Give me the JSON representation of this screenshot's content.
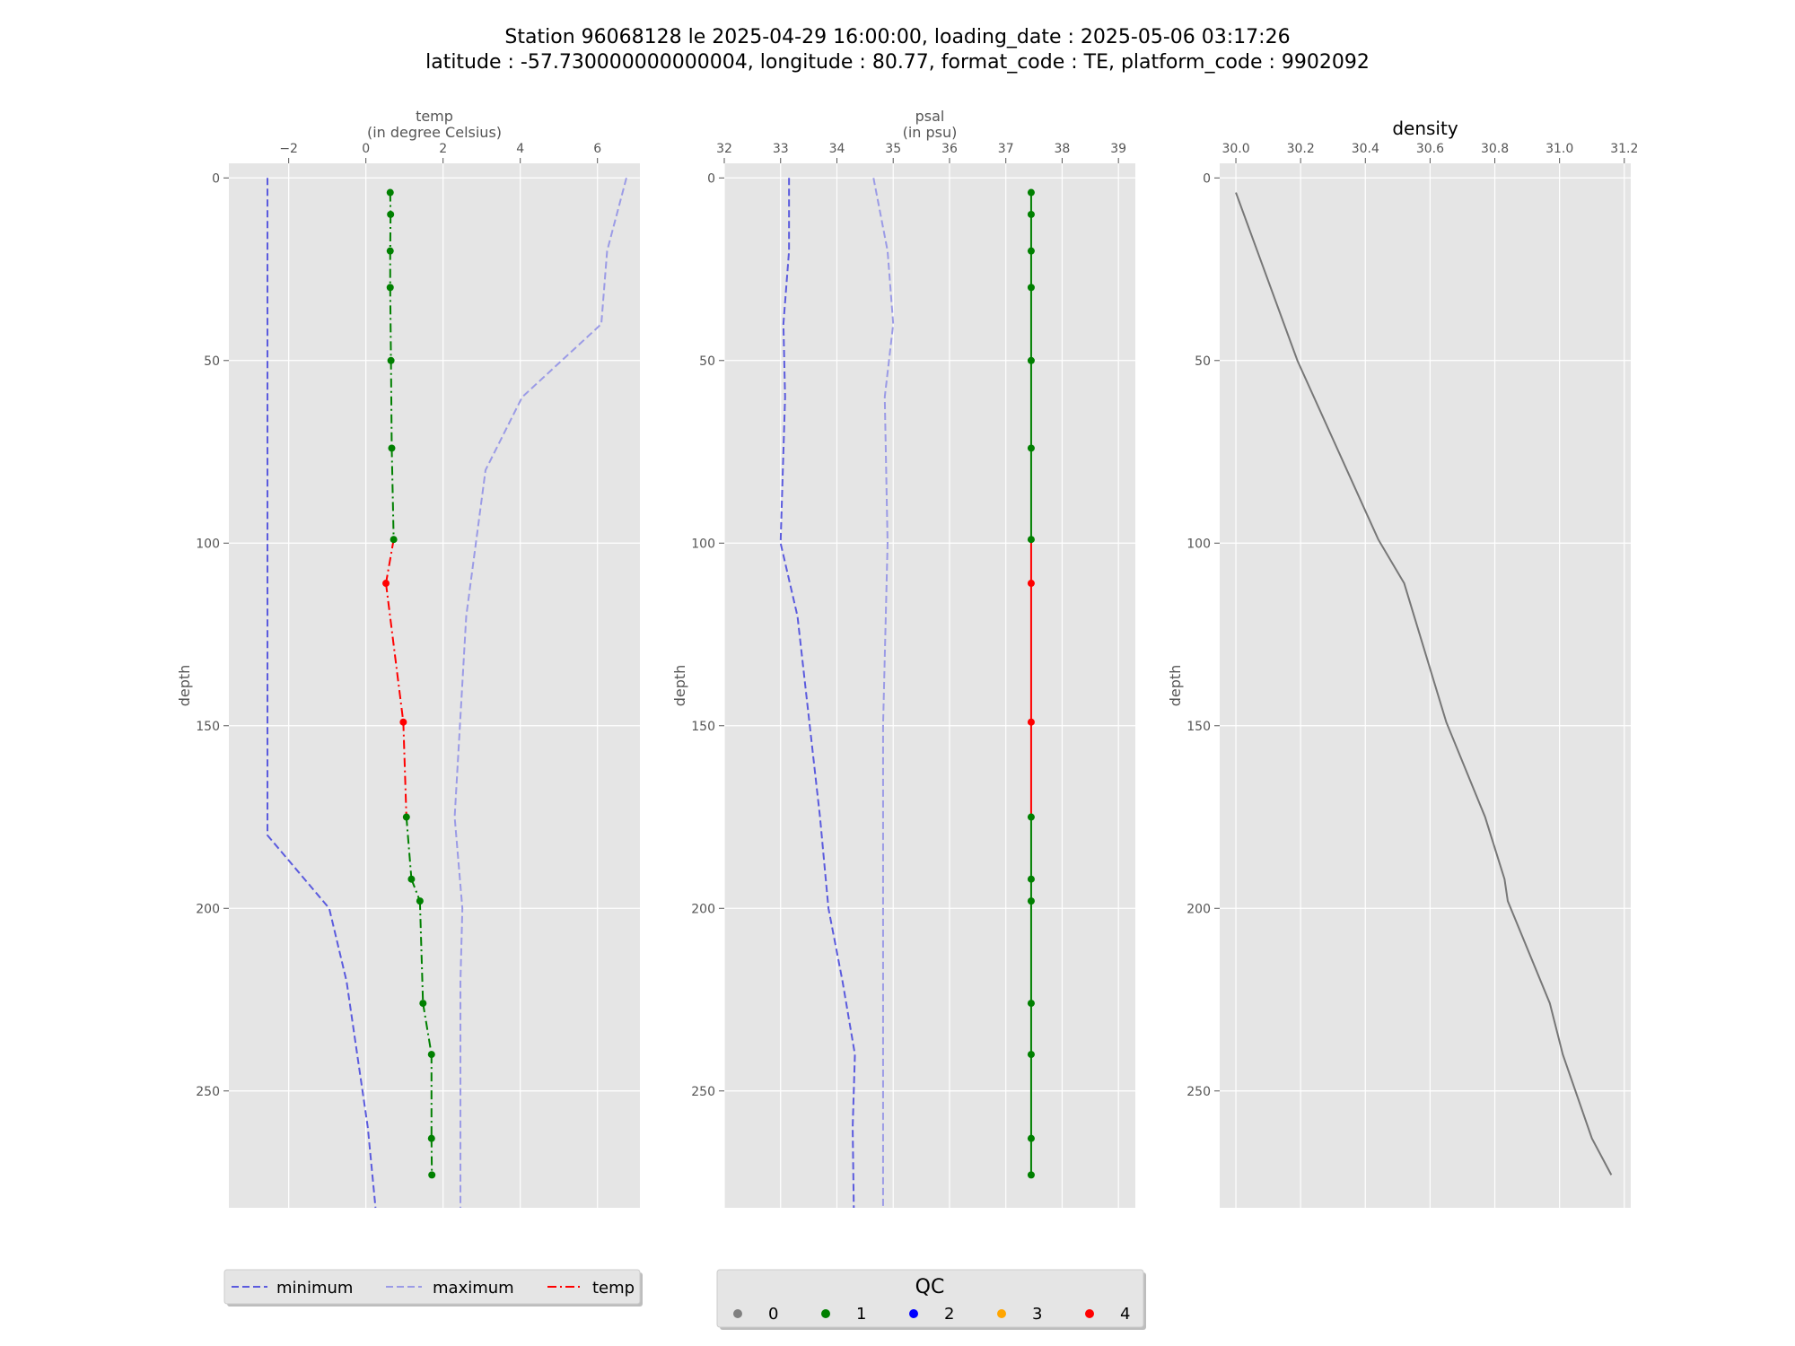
{
  "title": {
    "line1": "Station 96068128 le 2025-04-29 16:00:00, loading_date : 2025-05-06 03:17:26",
    "line2": "latitude : -57.730000000000004, longitude : 80.77, format_code : TE, platform_code : 9902092"
  },
  "qc_legend": {
    "title": "QC",
    "items": [
      {
        "label": "0",
        "color": "#808080"
      },
      {
        "label": "1",
        "color": "#008000"
      },
      {
        "label": "2",
        "color": "#0000ff"
      },
      {
        "label": "3",
        "color": "#ffa500"
      },
      {
        "label": "4",
        "color": "#ff0000"
      }
    ]
  },
  "colors": {
    "minimum": "#5b5bde",
    "maximum": "#9b9be6",
    "qc_good": "#008000",
    "qc_bad": "#ff0000",
    "density": "#777777",
    "panel_bg": "#e5e5e5",
    "grid": "#ffffff"
  },
  "chart_data": [
    {
      "type": "line",
      "xlabel_line1": "temp",
      "xlabel_line2": "(in degree Celsius)",
      "ylabel": "depth",
      "xlim": [
        -3.55,
        7.1
      ],
      "ylim": [
        282,
        -4
      ],
      "x_ticks": [
        -2,
        0,
        2,
        4,
        6
      ],
      "x_tick_labels": [
        "−2",
        "0",
        "2",
        "4",
        "6"
      ],
      "y_ticks": [
        0,
        50,
        100,
        150,
        200,
        250
      ],
      "grid": true,
      "legend_position": "below",
      "legend": [
        {
          "label": "minimum",
          "style": "dashed",
          "color": "#5b5bde"
        },
        {
          "label": "maximum",
          "style": "dashed",
          "color": "#9b9be6"
        },
        {
          "label": "temp",
          "style": "dashdot",
          "color": "#ff0000"
        }
      ],
      "series": [
        {
          "name": "minimum",
          "depth": [
            0,
            180,
            200,
            220,
            260,
            282
          ],
          "values": [
            -2.55,
            -2.55,
            -0.95,
            -0.5,
            0.05,
            0.25
          ]
        },
        {
          "name": "maximum",
          "depth": [
            0,
            20,
            40,
            60,
            80,
            120,
            175,
            200,
            220,
            282
          ],
          "values": [
            6.75,
            6.25,
            6.1,
            4.05,
            3.1,
            2.6,
            2.3,
            2.5,
            2.45,
            2.45
          ]
        },
        {
          "name": "temp",
          "depth": [
            4,
            10,
            20,
            30,
            50,
            74,
            99,
            111,
            149,
            175,
            192,
            198,
            226,
            240,
            263,
            273
          ],
          "values": [
            0.63,
            0.64,
            0.63,
            0.63,
            0.65,
            0.67,
            0.72,
            0.52,
            0.97,
            1.05,
            1.18,
            1.4,
            1.48,
            1.7,
            1.7,
            1.71
          ],
          "qc": [
            1,
            1,
            1,
            1,
            1,
            1,
            1,
            4,
            4,
            1,
            1,
            1,
            1,
            1,
            1,
            1
          ]
        }
      ]
    },
    {
      "type": "line",
      "xlabel_line1": "psal",
      "xlabel_line2": "(in psu)",
      "ylabel": "depth",
      "xlim": [
        32,
        39.3
      ],
      "ylim": [
        282,
        -4
      ],
      "x_ticks": [
        32,
        33,
        34,
        35,
        36,
        37,
        38,
        39
      ],
      "x_tick_labels": [
        "32",
        "33",
        "34",
        "35",
        "36",
        "37",
        "38",
        "39"
      ],
      "y_ticks": [
        0,
        50,
        100,
        150,
        200,
        250
      ],
      "grid": true,
      "legend_position": "below",
      "series": [
        {
          "name": "minimum",
          "depth": [
            0,
            20,
            40,
            60,
            100,
            120,
            175,
            200,
            220,
            240,
            260,
            282
          ],
          "values": [
            33.15,
            33.15,
            33.05,
            33.08,
            33.0,
            33.3,
            33.7,
            33.85,
            34.1,
            34.32,
            34.28,
            34.3
          ]
        },
        {
          "name": "maximum",
          "depth": [
            0,
            20,
            40,
            60,
            100,
            150,
            282
          ],
          "values": [
            34.65,
            34.9,
            35.0,
            34.85,
            34.9,
            34.82,
            34.82
          ]
        },
        {
          "name": "psal",
          "depth": [
            4,
            10,
            20,
            30,
            50,
            74,
            99,
            111,
            149,
            175,
            192,
            198,
            226,
            240,
            263,
            273
          ],
          "values": [
            37.45,
            37.45,
            37.45,
            37.45,
            37.45,
            37.45,
            37.45,
            37.45,
            37.45,
            37.45,
            37.45,
            37.45,
            37.45,
            37.45,
            37.45,
            37.45
          ],
          "qc": [
            1,
            1,
            1,
            1,
            1,
            1,
            1,
            4,
            4,
            1,
            1,
            1,
            1,
            1,
            1,
            1
          ]
        }
      ]
    },
    {
      "type": "line",
      "title": "density",
      "ylabel": "depth",
      "xlim": [
        29.95,
        31.22
      ],
      "ylim": [
        282,
        -4
      ],
      "x_ticks": [
        30.0,
        30.2,
        30.4,
        30.6,
        30.8,
        31.0,
        31.2
      ],
      "x_tick_labels": [
        "30.0",
        "30.2",
        "30.4",
        "30.6",
        "30.8",
        "31.0",
        "31.2"
      ],
      "y_ticks": [
        0,
        50,
        100,
        150,
        200,
        250
      ],
      "grid": true,
      "series": [
        {
          "name": "density",
          "depth": [
            4,
            50,
            99,
            111,
            149,
            175,
            192,
            198,
            226,
            240,
            263,
            273
          ],
          "values": [
            30.0,
            30.19,
            30.44,
            30.52,
            30.65,
            30.77,
            30.83,
            30.84,
            30.97,
            31.01,
            31.1,
            31.16
          ]
        }
      ]
    }
  ]
}
